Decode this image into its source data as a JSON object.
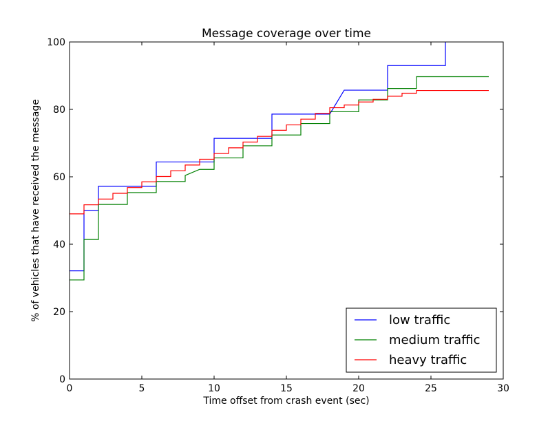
{
  "chart_data": {
    "type": "line",
    "title": "Message coverage over time",
    "xlabel": "Time offset from crash event (sec)",
    "ylabel": "% of vehicles that have received the message",
    "xlim": [
      0,
      30
    ],
    "ylim": [
      0,
      100
    ],
    "xticks": [
      0,
      5,
      10,
      15,
      20,
      25,
      30
    ],
    "yticks": [
      0,
      20,
      40,
      60,
      80,
      100
    ],
    "grid": false,
    "legend_position": "lower-right",
    "series": [
      {
        "name": "low traffic",
        "color": "#0000ff",
        "points": [
          [
            0,
            32.1
          ],
          [
            1,
            32.1
          ],
          [
            1,
            50
          ],
          [
            2,
            50
          ],
          [
            2,
            57.2
          ],
          [
            6,
            57.2
          ],
          [
            6,
            64.4
          ],
          [
            10,
            64.4
          ],
          [
            10,
            71.4
          ],
          [
            14,
            71.4
          ],
          [
            14,
            78.6
          ],
          [
            18,
            78.6
          ],
          [
            19,
            85.7
          ],
          [
            22,
            85.7
          ],
          [
            22,
            93
          ],
          [
            26,
            93
          ],
          [
            26,
            100
          ]
        ]
      },
      {
        "name": "medium traffic",
        "color": "#008000",
        "points": [
          [
            0,
            29.4
          ],
          [
            1,
            29.4
          ],
          [
            1,
            41.4
          ],
          [
            2,
            41.4
          ],
          [
            2,
            51.8
          ],
          [
            4,
            51.8
          ],
          [
            4,
            55.3
          ],
          [
            6,
            55.3
          ],
          [
            6,
            58.6
          ],
          [
            8,
            58.6
          ],
          [
            8,
            60.4
          ],
          [
            9,
            62.2
          ],
          [
            10,
            62.2
          ],
          [
            10,
            65.6
          ],
          [
            12,
            65.6
          ],
          [
            12,
            69.2
          ],
          [
            14,
            69.2
          ],
          [
            14,
            72.4
          ],
          [
            16,
            72.4
          ],
          [
            16,
            75.8
          ],
          [
            18,
            75.8
          ],
          [
            18,
            79.3
          ],
          [
            20,
            79.3
          ],
          [
            20,
            82.8
          ],
          [
            22,
            82.8
          ],
          [
            22,
            86.2
          ],
          [
            24,
            86.2
          ],
          [
            24,
            89.7
          ],
          [
            29,
            89.7
          ]
        ]
      },
      {
        "name": "heavy traffic",
        "color": "#ff0000",
        "points": [
          [
            0,
            49
          ],
          [
            1,
            49
          ],
          [
            1,
            51.7
          ],
          [
            2,
            51.7
          ],
          [
            2,
            53.4
          ],
          [
            3,
            53.4
          ],
          [
            3,
            55.1
          ],
          [
            4,
            55.1
          ],
          [
            4,
            56.8
          ],
          [
            5,
            56.8
          ],
          [
            5,
            58.5
          ],
          [
            6,
            58.5
          ],
          [
            6,
            60.1
          ],
          [
            7,
            60.1
          ],
          [
            7,
            61.8
          ],
          [
            8,
            61.8
          ],
          [
            8,
            63.5
          ],
          [
            9,
            63.5
          ],
          [
            9,
            65.2
          ],
          [
            10,
            65.2
          ],
          [
            10,
            66.9
          ],
          [
            11,
            66.9
          ],
          [
            11,
            68.6
          ],
          [
            12,
            68.6
          ],
          [
            12,
            70.3
          ],
          [
            13,
            70.3
          ],
          [
            13,
            72
          ],
          [
            14,
            72
          ],
          [
            14,
            73.8
          ],
          [
            15,
            73.8
          ],
          [
            15,
            75.4
          ],
          [
            16,
            75.4
          ],
          [
            16,
            77.1
          ],
          [
            17,
            77.1
          ],
          [
            17,
            78.8
          ],
          [
            18,
            78.8
          ],
          [
            18,
            80.5
          ],
          [
            19,
            80.5
          ],
          [
            19,
            81.3
          ],
          [
            20,
            81.3
          ],
          [
            20,
            82.2
          ],
          [
            21,
            82.2
          ],
          [
            21,
            83
          ],
          [
            22,
            83
          ],
          [
            22,
            83.9
          ],
          [
            23,
            83.9
          ],
          [
            23,
            84.8
          ],
          [
            24,
            84.8
          ],
          [
            24,
            85.6
          ],
          [
            29,
            85.6
          ]
        ]
      }
    ]
  }
}
